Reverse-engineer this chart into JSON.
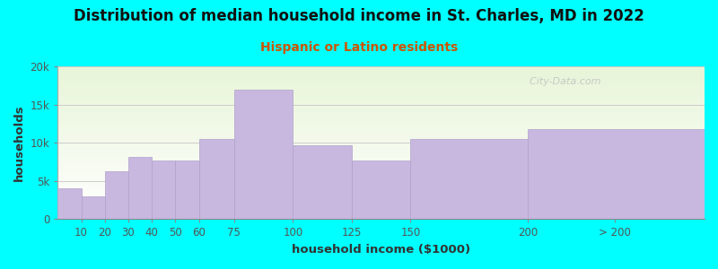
{
  "title": "Distribution of median household income in St. Charles, MD in 2022",
  "subtitle": "Hispanic or Latino residents",
  "xlabel": "household income ($1000)",
  "ylabel": "households",
  "background_color": "#00FFFF",
  "bar_color": "#C8B8E0",
  "bar_edge_color": "#b0a0cc",
  "bin_lefts": [
    0,
    10,
    20,
    30,
    40,
    50,
    60,
    75,
    100,
    125,
    150,
    200
  ],
  "bin_rights": [
    10,
    20,
    30,
    40,
    50,
    60,
    75,
    100,
    125,
    150,
    200,
    275
  ],
  "bin_labels": [
    "10",
    "20",
    "30",
    "40",
    "50",
    "60",
    "75",
    "100",
    "125",
    "150",
    "200",
    "> 200"
  ],
  "values": [
    4000,
    3000,
    6300,
    8100,
    7700,
    7700,
    10500,
    17000,
    9700,
    7700,
    10500,
    11800
  ],
  "ylim": [
    0,
    20000
  ],
  "yticks": [
    0,
    5000,
    10000,
    15000,
    20000
  ],
  "ytick_labels": [
    "0",
    "5k",
    "10k",
    "15k",
    "20k"
  ],
  "xtick_positions": [
    10,
    20,
    30,
    40,
    50,
    60,
    75,
    100,
    125,
    150,
    200,
    237
  ],
  "xtick_labels": [
    "10",
    "20",
    "30",
    "40",
    "50",
    "60",
    "75",
    "100",
    "125",
    "150",
    "200",
    "> 200"
  ],
  "xlim": [
    0,
    275
  ],
  "title_fontsize": 12,
  "subtitle_fontsize": 10,
  "axis_label_fontsize": 9.5,
  "tick_fontsize": 8.5,
  "watermark_text": "  City-Data.com",
  "title_color": "#111111",
  "subtitle_color": "#cc5500",
  "axis_label_color": "#333333",
  "tick_color": "#555555"
}
